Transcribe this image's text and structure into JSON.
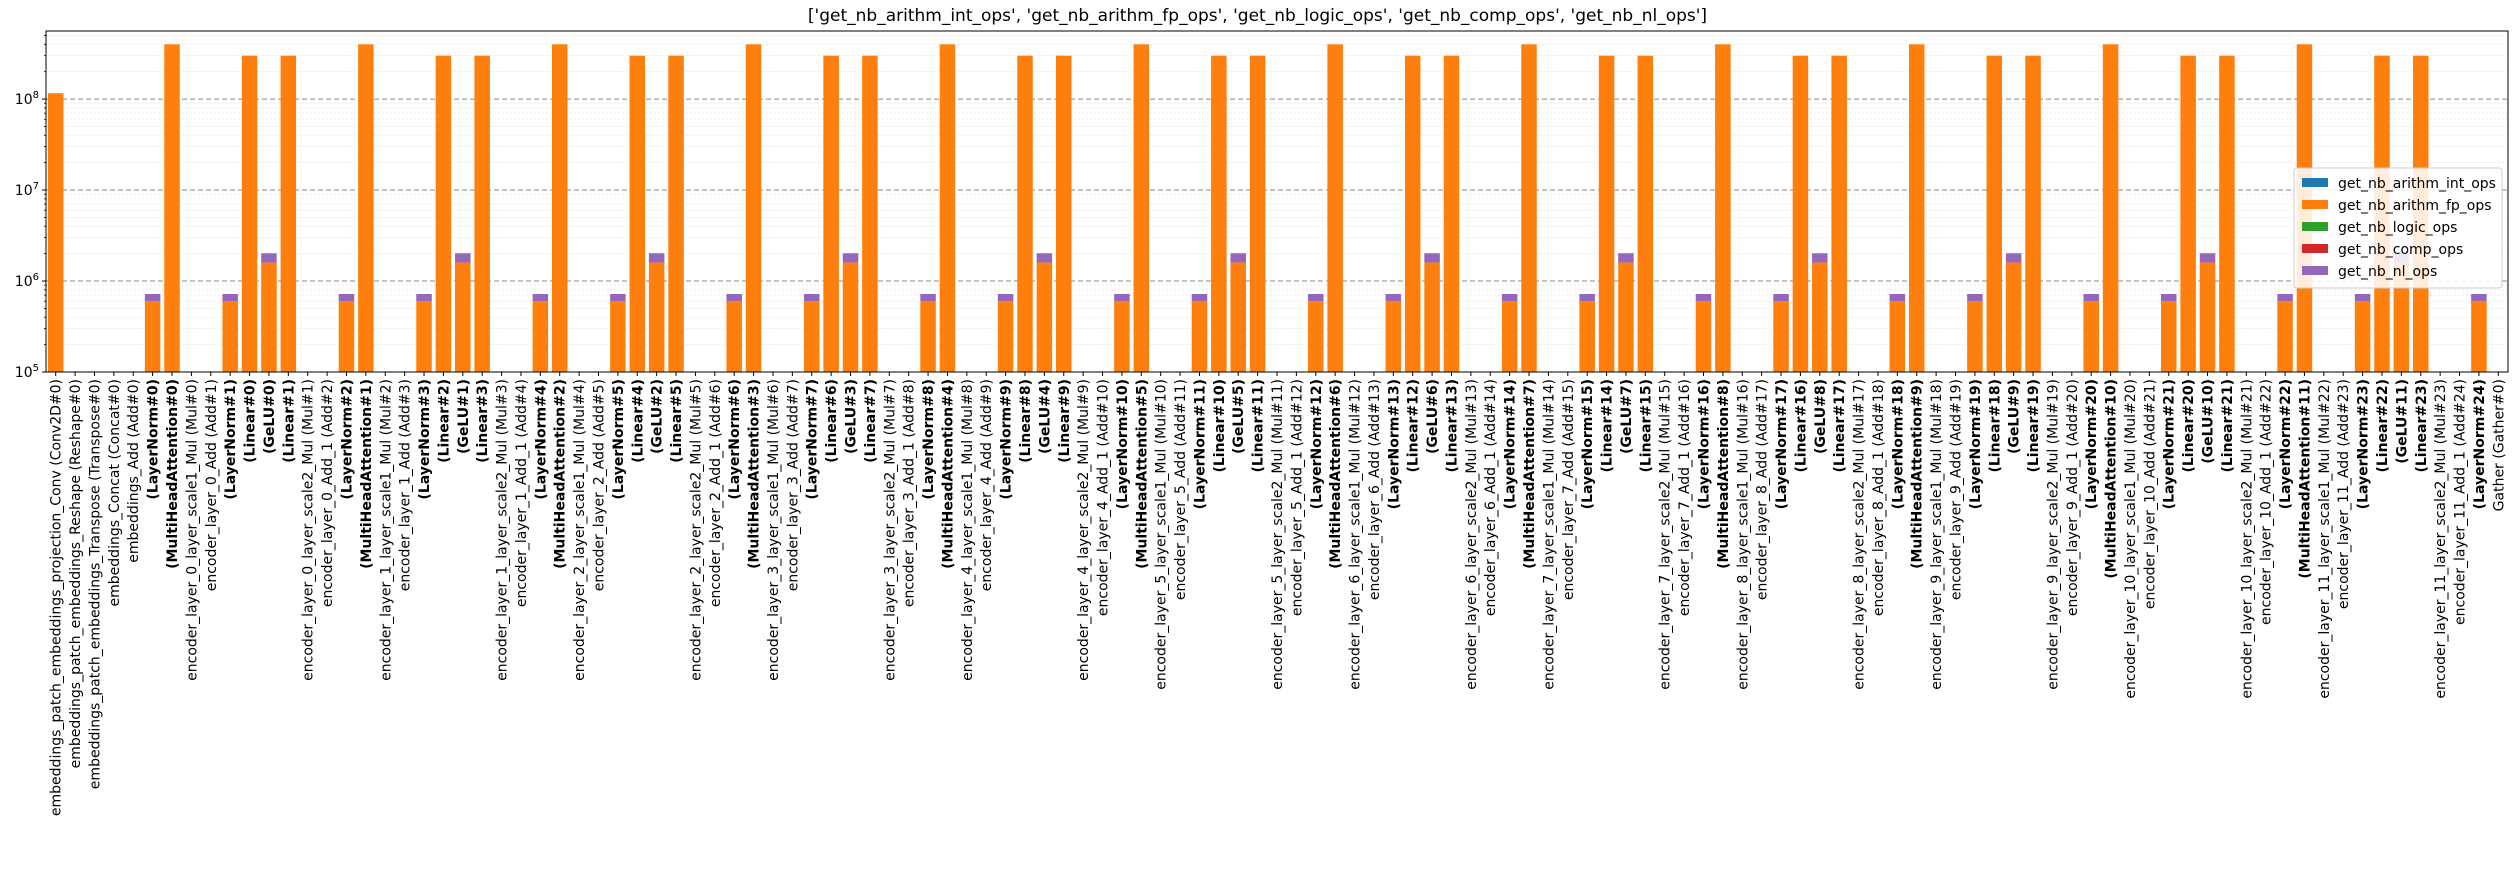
{
  "chart_data": {
    "type": "bar",
    "stacked": true,
    "title": "['get_nb_arithm_int_ops', 'get_nb_arithm_fp_ops', 'get_nb_logic_ops', 'get_nb_comp_ops', 'get_nb_nl_ops']",
    "xlabel": "",
    "ylabel": "",
    "yscale": "log",
    "ylim": [
      100000,
      560000000
    ],
    "yticks": [
      {
        "value": 100000,
        "label": "10^5"
      },
      {
        "value": 1000000,
        "label": "10^6"
      },
      {
        "value": 10000000,
        "label": "10^7"
      },
      {
        "value": 100000000,
        "label": "10^8"
      }
    ],
    "grid": "y major dashed, y minor dotted",
    "legend_position": "right",
    "categories": [
      {
        "label": "embeddings_patch_embeddings_projection_Conv (Conv2D#0)",
        "bold": false
      },
      {
        "label": "embeddings_patch_embeddings_Reshape (Reshape#0)",
        "bold": false
      },
      {
        "label": "embeddings_patch_embeddings_Transpose (Transpose#0)",
        "bold": false
      },
      {
        "label": "embeddings_Concat (Concat#0)",
        "bold": false
      },
      {
        "label": "embeddings_Add (Add#0)",
        "bold": false
      },
      {
        "label": "(LayerNorm#0)",
        "bold": true
      },
      {
        "label": "(MultiHeadAttention#0)",
        "bold": true
      },
      {
        "label": "encoder_layer_0_layer_scale1_Mul (Mul#0)",
        "bold": false
      },
      {
        "label": "encoder_layer_0_Add (Add#1)",
        "bold": false
      },
      {
        "label": "(LayerNorm#1)",
        "bold": true
      },
      {
        "label": "(Linear#0)",
        "bold": true
      },
      {
        "label": "(GeLU#0)",
        "bold": true
      },
      {
        "label": "(Linear#1)",
        "bold": true
      },
      {
        "label": "encoder_layer_0_layer_scale2_Mul (Mul#1)",
        "bold": false
      },
      {
        "label": "encoder_layer_0_Add_1 (Add#2)",
        "bold": false
      },
      {
        "label": "(LayerNorm#2)",
        "bold": true
      },
      {
        "label": "(MultiHeadAttention#1)",
        "bold": true
      },
      {
        "label": "encoder_layer_1_layer_scale1_Mul (Mul#2)",
        "bold": false
      },
      {
        "label": "encoder_layer_1_Add (Add#3)",
        "bold": false
      },
      {
        "label": "(LayerNorm#3)",
        "bold": true
      },
      {
        "label": "(Linear#2)",
        "bold": true
      },
      {
        "label": "(GeLU#1)",
        "bold": true
      },
      {
        "label": "(Linear#3)",
        "bold": true
      },
      {
        "label": "encoder_layer_1_layer_scale2_Mul (Mul#3)",
        "bold": false
      },
      {
        "label": "encoder_layer_1_Add_1 (Add#4)",
        "bold": false
      },
      {
        "label": "(LayerNorm#4)",
        "bold": true
      },
      {
        "label": "(MultiHeadAttention#2)",
        "bold": true
      },
      {
        "label": "encoder_layer_2_layer_scale1_Mul (Mul#4)",
        "bold": false
      },
      {
        "label": "encoder_layer_2_Add (Add#5)",
        "bold": false
      },
      {
        "label": "(LayerNorm#5)",
        "bold": true
      },
      {
        "label": "(Linear#4)",
        "bold": true
      },
      {
        "label": "(GeLU#2)",
        "bold": true
      },
      {
        "label": "(Linear#5)",
        "bold": true
      },
      {
        "label": "encoder_layer_2_layer_scale2_Mul (Mul#5)",
        "bold": false
      },
      {
        "label": "encoder_layer_2_Add_1 (Add#6)",
        "bold": false
      },
      {
        "label": "(LayerNorm#6)",
        "bold": true
      },
      {
        "label": "(MultiHeadAttention#3)",
        "bold": true
      },
      {
        "label": "encoder_layer_3_layer_scale1_Mul (Mul#6)",
        "bold": false
      },
      {
        "label": "encoder_layer_3_Add (Add#7)",
        "bold": false
      },
      {
        "label": "(LayerNorm#7)",
        "bold": true
      },
      {
        "label": "(Linear#6)",
        "bold": true
      },
      {
        "label": "(GeLU#3)",
        "bold": true
      },
      {
        "label": "(Linear#7)",
        "bold": true
      },
      {
        "label": "encoder_layer_3_layer_scale2_Mul (Mul#7)",
        "bold": false
      },
      {
        "label": "encoder_layer_3_Add_1 (Add#8)",
        "bold": false
      },
      {
        "label": "(LayerNorm#8)",
        "bold": true
      },
      {
        "label": "(MultiHeadAttention#4)",
        "bold": true
      },
      {
        "label": "encoder_layer_4_layer_scale1_Mul (Mul#8)",
        "bold": false
      },
      {
        "label": "encoder_layer_4_Add (Add#9)",
        "bold": false
      },
      {
        "label": "(LayerNorm#9)",
        "bold": true
      },
      {
        "label": "(Linear#8)",
        "bold": true
      },
      {
        "label": "(GeLU#4)",
        "bold": true
      },
      {
        "label": "(Linear#9)",
        "bold": true
      },
      {
        "label": "encoder_layer_4_layer_scale2_Mul (Mul#9)",
        "bold": false
      },
      {
        "label": "encoder_layer_4_Add_1 (Add#10)",
        "bold": false
      },
      {
        "label": "(LayerNorm#10)",
        "bold": true
      },
      {
        "label": "(MultiHeadAttention#5)",
        "bold": true
      },
      {
        "label": "encoder_layer_5_layer_scale1_Mul (Mul#10)",
        "bold": false
      },
      {
        "label": "encoder_layer_5_Add (Add#11)",
        "bold": false
      },
      {
        "label": "(LayerNorm#11)",
        "bold": true
      },
      {
        "label": "(Linear#10)",
        "bold": true
      },
      {
        "label": "(GeLU#5)",
        "bold": true
      },
      {
        "label": "(Linear#11)",
        "bold": true
      },
      {
        "label": "encoder_layer_5_layer_scale2_Mul (Mul#11)",
        "bold": false
      },
      {
        "label": "encoder_layer_5_Add_1 (Add#12)",
        "bold": false
      },
      {
        "label": "(LayerNorm#12)",
        "bold": true
      },
      {
        "label": "(MultiHeadAttention#6)",
        "bold": true
      },
      {
        "label": "encoder_layer_6_layer_scale1_Mul (Mul#12)",
        "bold": false
      },
      {
        "label": "encoder_layer_6_Add (Add#13)",
        "bold": false
      },
      {
        "label": "(LayerNorm#13)",
        "bold": true
      },
      {
        "label": "(Linear#12)",
        "bold": true
      },
      {
        "label": "(GeLU#6)",
        "bold": true
      },
      {
        "label": "(Linear#13)",
        "bold": true
      },
      {
        "label": "encoder_layer_6_layer_scale2_Mul (Mul#13)",
        "bold": false
      },
      {
        "label": "encoder_layer_6_Add_1 (Add#14)",
        "bold": false
      },
      {
        "label": "(LayerNorm#14)",
        "bold": true
      },
      {
        "label": "(MultiHeadAttention#7)",
        "bold": true
      },
      {
        "label": "encoder_layer_7_layer_scale1_Mul (Mul#14)",
        "bold": false
      },
      {
        "label": "encoder_layer_7_Add (Add#15)",
        "bold": false
      },
      {
        "label": "(LayerNorm#15)",
        "bold": true
      },
      {
        "label": "(Linear#14)",
        "bold": true
      },
      {
        "label": "(GeLU#7)",
        "bold": true
      },
      {
        "label": "(Linear#15)",
        "bold": true
      },
      {
        "label": "encoder_layer_7_layer_scale2_Mul (Mul#15)",
        "bold": false
      },
      {
        "label": "encoder_layer_7_Add_1 (Add#16)",
        "bold": false
      },
      {
        "label": "(LayerNorm#16)",
        "bold": true
      },
      {
        "label": "(MultiHeadAttention#8)",
        "bold": true
      },
      {
        "label": "encoder_layer_8_layer_scale1_Mul (Mul#16)",
        "bold": false
      },
      {
        "label": "encoder_layer_8_Add (Add#17)",
        "bold": false
      },
      {
        "label": "(LayerNorm#17)",
        "bold": true
      },
      {
        "label": "(Linear#16)",
        "bold": true
      },
      {
        "label": "(GeLU#8)",
        "bold": true
      },
      {
        "label": "(Linear#17)",
        "bold": true
      },
      {
        "label": "encoder_layer_8_layer_scale2_Mul (Mul#17)",
        "bold": false
      },
      {
        "label": "encoder_layer_8_Add_1 (Add#18)",
        "bold": false
      },
      {
        "label": "(LayerNorm#18)",
        "bold": true
      },
      {
        "label": "(MultiHeadAttention#9)",
        "bold": true
      },
      {
        "label": "encoder_layer_9_layer_scale1_Mul (Mul#18)",
        "bold": false
      },
      {
        "label": "encoder_layer_9_Add (Add#19)",
        "bold": false
      },
      {
        "label": "(LayerNorm#19)",
        "bold": true
      },
      {
        "label": "(Linear#18)",
        "bold": true
      },
      {
        "label": "(GeLU#9)",
        "bold": true
      },
      {
        "label": "(Linear#19)",
        "bold": true
      },
      {
        "label": "encoder_layer_9_layer_scale2_Mul (Mul#19)",
        "bold": false
      },
      {
        "label": "encoder_layer_9_Add_1 (Add#20)",
        "bold": false
      },
      {
        "label": "(LayerNorm#20)",
        "bold": true
      },
      {
        "label": "(MultiHeadAttention#10)",
        "bold": true
      },
      {
        "label": "encoder_layer_10_layer_scale1_Mul (Mul#20)",
        "bold": false
      },
      {
        "label": "encoder_layer_10_Add (Add#21)",
        "bold": false
      },
      {
        "label": "(LayerNorm#21)",
        "bold": true
      },
      {
        "label": "(Linear#20)",
        "bold": true
      },
      {
        "label": "(GeLU#10)",
        "bold": true
      },
      {
        "label": "(Linear#21)",
        "bold": true
      },
      {
        "label": "encoder_layer_10_layer_scale2_Mul (Mul#21)",
        "bold": false
      },
      {
        "label": "encoder_layer_10_Add_1 (Add#22)",
        "bold": false
      },
      {
        "label": "(LayerNorm#22)",
        "bold": true
      },
      {
        "label": "(MultiHeadAttention#11)",
        "bold": true
      },
      {
        "label": "encoder_layer_11_layer_scale1_Mul (Mul#22)",
        "bold": false
      },
      {
        "label": "encoder_layer_11_Add (Add#23)",
        "bold": false
      },
      {
        "label": "(LayerNorm#23)",
        "bold": true
      },
      {
        "label": "(Linear#22)",
        "bold": true
      },
      {
        "label": "(GeLU#11)",
        "bold": true
      },
      {
        "label": "(Linear#23)",
        "bold": true
      },
      {
        "label": "encoder_layer_11_layer_scale2_Mul (Mul#23)",
        "bold": false
      },
      {
        "label": "encoder_layer_11_Add_1 (Add#24)",
        "bold": false
      },
      {
        "label": "(LayerNorm#24)",
        "bold": true
      },
      {
        "label": "Gather (Gather#0)",
        "bold": false
      }
    ],
    "series": [
      {
        "name": "get_nb_arithm_int_ops",
        "color": "#1f77b4",
        "values": "all zero (not visible)"
      },
      {
        "name": "get_nb_arithm_fp_ops",
        "color": "#ff7f0e",
        "values": [
          116000000,
          0,
          0,
          0,
          0,
          600000,
          400000000,
          0,
          0,
          600000,
          300000000,
          1600000,
          300000000,
          0,
          0,
          600000,
          400000000,
          0,
          0,
          600000,
          300000000,
          1600000,
          300000000,
          0,
          0,
          600000,
          400000000,
          0,
          0,
          600000,
          300000000,
          1600000,
          300000000,
          0,
          0,
          600000,
          400000000,
          0,
          0,
          600000,
          300000000,
          1600000,
          300000000,
          0,
          0,
          600000,
          400000000,
          0,
          0,
          600000,
          300000000,
          1600000,
          300000000,
          0,
          0,
          600000,
          400000000,
          0,
          0,
          600000,
          300000000,
          1600000,
          300000000,
          0,
          0,
          600000,
          400000000,
          0,
          0,
          600000,
          300000000,
          1600000,
          300000000,
          0,
          0,
          600000,
          400000000,
          0,
          0,
          600000,
          300000000,
          1600000,
          300000000,
          0,
          0,
          600000,
          400000000,
          0,
          0,
          600000,
          300000000,
          1600000,
          300000000,
          0,
          0,
          600000,
          400000000,
          0,
          0,
          600000,
          300000000,
          1600000,
          300000000,
          0,
          0,
          600000,
          400000000,
          0,
          0,
          600000,
          300000000,
          1600000,
          300000000,
          0,
          0,
          600000,
          400000000,
          0,
          0,
          600000,
          300000000,
          1600000,
          300000000,
          0,
          0,
          600000,
          0
        ]
      },
      {
        "name": "get_nb_logic_ops",
        "color": "#2ca02c",
        "values": "all zero (not visible)"
      },
      {
        "name": "get_nb_comp_ops",
        "color": "#d62728",
        "values": "all zero (not visible)"
      },
      {
        "name": "get_nb_nl_ops",
        "color": "#9467bd",
        "values": [
          0,
          0,
          0,
          0,
          0,
          120000,
          0,
          0,
          0,
          120000,
          0,
          420000,
          0,
          0,
          0,
          120000,
          0,
          0,
          0,
          120000,
          0,
          420000,
          0,
          0,
          0,
          120000,
          0,
          0,
          0,
          120000,
          0,
          420000,
          0,
          0,
          0,
          120000,
          0,
          0,
          0,
          120000,
          0,
          420000,
          0,
          0,
          0,
          120000,
          0,
          0,
          0,
          120000,
          0,
          420000,
          0,
          0,
          0,
          120000,
          0,
          0,
          0,
          120000,
          0,
          420000,
          0,
          0,
          0,
          120000,
          0,
          0,
          0,
          120000,
          0,
          420000,
          0,
          0,
          0,
          120000,
          0,
          0,
          0,
          120000,
          0,
          420000,
          0,
          0,
          0,
          120000,
          0,
          0,
          0,
          120000,
          0,
          420000,
          0,
          0,
          0,
          120000,
          0,
          0,
          0,
          120000,
          0,
          420000,
          0,
          0,
          0,
          120000,
          0,
          0,
          0,
          120000,
          0,
          420000,
          0,
          0,
          0,
          120000,
          0,
          0,
          0,
          120000,
          0,
          420000,
          0,
          0,
          0,
          120000,
          0
        ]
      }
    ]
  }
}
